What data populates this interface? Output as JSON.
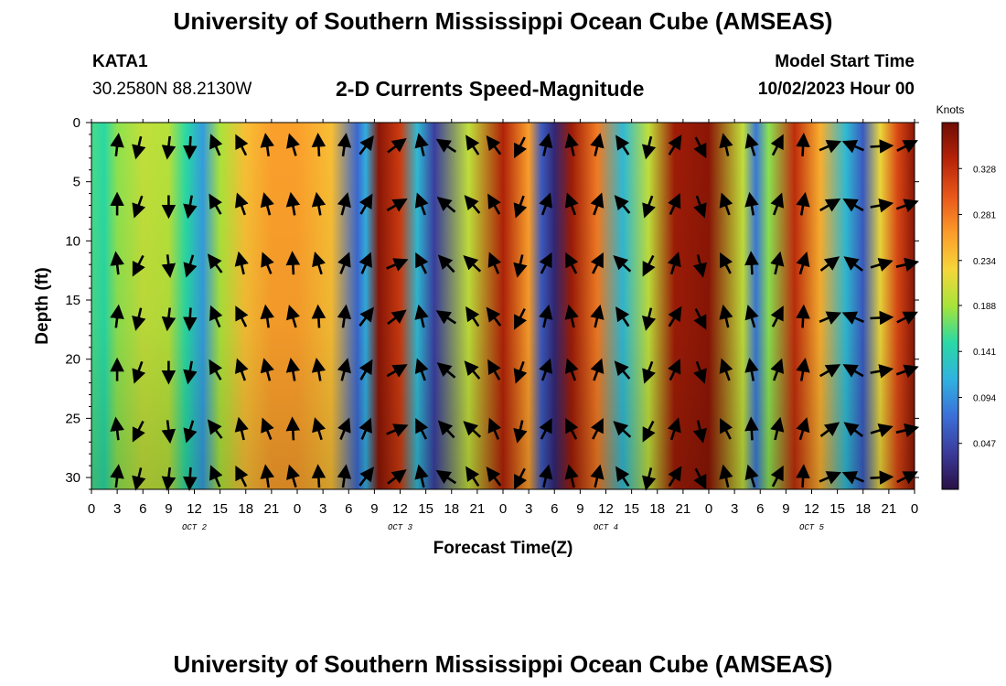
{
  "header": {
    "title": "University of Southern Mississippi Ocean Cube (AMSEAS)",
    "station": "KATA1",
    "coords": "30.2580N  88.2130W",
    "subtitle": "2-D Currents Speed-Magnitude",
    "model_start_label": "Model Start Time",
    "model_start_value": "10/02/2023 Hour 00"
  },
  "footer": {
    "title": "University of Southern Mississippi Ocean Cube (AMSEAS)"
  },
  "chart_data": {
    "type": "heatmap",
    "title": "2-D Currents Speed-Magnitude",
    "xlabel": "Forecast Time(Z)",
    "ylabel": "Depth (ft)",
    "x_hours": [
      0,
      96
    ],
    "ylim": [
      0,
      31
    ],
    "y_inverted": true,
    "x_tick_labels": [
      "0",
      "3",
      "6",
      "9",
      "12",
      "15",
      "18",
      "21",
      "0",
      "3",
      "6",
      "9",
      "12",
      "15",
      "18",
      "21",
      "0",
      "3",
      "6",
      "9",
      "12",
      "15",
      "18",
      "21",
      "0",
      "3",
      "6",
      "9",
      "12",
      "15",
      "18",
      "21",
      "0"
    ],
    "day_labels": [
      "OCT 2",
      "OCT 3",
      "OCT 4",
      "OCT 5"
    ],
    "y_ticks": [
      0,
      5,
      10,
      15,
      20,
      25,
      30
    ],
    "colorbar": {
      "unit": "Knots",
      "ticks": [
        "0.328",
        "0.281",
        "0.234",
        "0.188",
        "0.141",
        "0.094",
        "0.047"
      ],
      "tick_values": [
        0.328,
        0.281,
        0.234,
        0.188,
        0.141,
        0.094,
        0.047
      ],
      "range": [
        0,
        0.375
      ],
      "colors": [
        "#2a1045",
        "#3b3b9b",
        "#3b6fd8",
        "#30b2e0",
        "#29d9a4",
        "#a6e43a",
        "#f6d63a",
        "#fb9b2a",
        "#e8561a",
        "#b62308",
        "#6f0d05"
      ]
    },
    "speed_profile": {
      "hours": [
        0,
        1.5,
        3,
        6,
        9,
        11,
        13,
        15,
        18,
        21,
        24,
        28,
        31,
        32,
        33.5,
        36,
        38,
        40,
        44,
        48,
        51,
        52.5,
        54,
        56,
        59,
        62,
        65,
        68,
        72,
        76,
        77.5,
        79,
        82,
        85,
        88,
        90,
        92,
        94,
        96
      ],
      "speeds": [
        0.16,
        0.15,
        0.18,
        0.2,
        0.195,
        0.15,
        0.1,
        0.19,
        0.24,
        0.26,
        0.26,
        0.24,
        0.07,
        0.11,
        0.36,
        0.32,
        0.12,
        0.04,
        0.2,
        0.34,
        0.26,
        0.06,
        0.02,
        0.35,
        0.28,
        0.12,
        0.2,
        0.35,
        0.36,
        0.2,
        0.08,
        0.18,
        0.33,
        0.25,
        0.12,
        0.06,
        0.22,
        0.31,
        0.36
      ]
    },
    "arrow_hours": [
      3,
      5.5,
      9,
      11.5,
      14.5,
      17.5,
      20.5,
      23.5,
      26.5,
      29.5,
      32,
      35.5,
      38.5,
      41.5,
      44.5,
      47,
      50,
      53,
      56,
      59,
      62,
      65,
      68,
      71,
      74,
      77,
      80,
      83,
      86,
      89,
      92,
      95
    ],
    "arrow_depths": [
      2,
      7,
      12,
      16.5,
      21,
      26,
      30
    ],
    "arrow_directions_deg": [
      0,
      200,
      180,
      190,
      330,
      340,
      345,
      350,
      350,
      15,
      30,
      60,
      340,
      310,
      320,
      330,
      200,
      20,
      340,
      20,
      320,
      200,
      25,
      160,
      340,
      350,
      20,
      10,
      60,
      300,
      80,
      70
    ]
  }
}
